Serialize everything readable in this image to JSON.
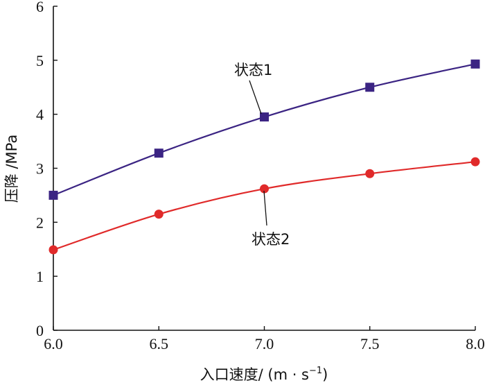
{
  "chart_data": {
    "type": "line",
    "x": [
      6.0,
      6.5,
      7.0,
      7.5,
      8.0
    ],
    "x_tick_labels": [
      "6.0",
      "6.5",
      "7.0",
      "7.5",
      "8.0"
    ],
    "y_tick_labels": [
      "0",
      "1",
      "2",
      "3",
      "4",
      "5",
      "6"
    ],
    "xlim": [
      6.0,
      8.0
    ],
    "ylim": [
      0,
      6
    ],
    "xlabel": "入口速度/ (m · s",
    "xlabel_sup": "−1",
    "xlabel_end": ")",
    "ylabel": "压降 /MPa",
    "grid": false,
    "legend": "none",
    "series": [
      {
        "name": "状态1",
        "values": [
          2.5,
          3.28,
          3.95,
          4.5,
          4.93
        ],
        "color": "#3b2483",
        "marker": "square"
      },
      {
        "name": "状态2",
        "values": [
          1.49,
          2.15,
          2.62,
          2.9,
          3.12
        ],
        "color": "#e02a2a",
        "marker": "circle"
      }
    ],
    "annotations": [
      {
        "text": "状态1",
        "series": 0,
        "point_index": 2
      },
      {
        "text": "状态2",
        "series": 1,
        "point_index": 2
      }
    ]
  }
}
